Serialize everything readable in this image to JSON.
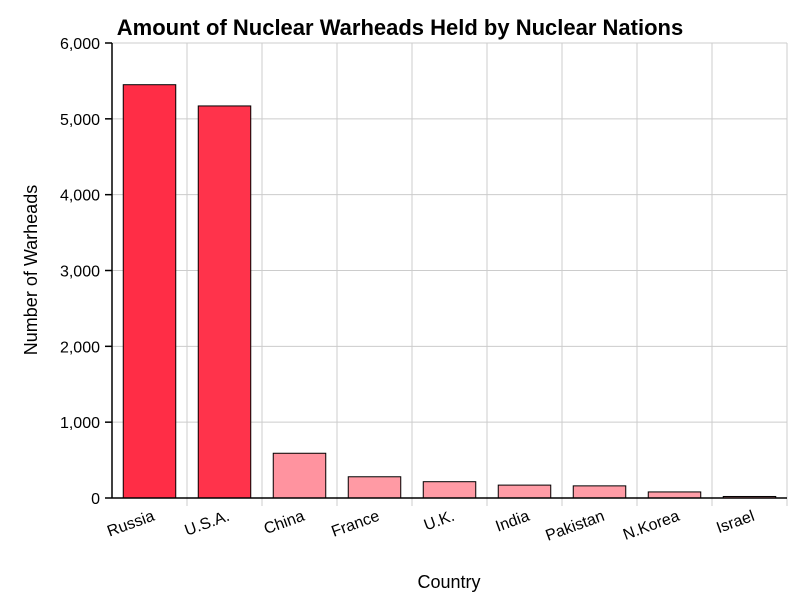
{
  "chart_data": {
    "type": "bar",
    "title": "Amount of Nuclear Warheads Held by Nuclear Nations",
    "xlabel": "Country",
    "ylabel": "Number of Warheads",
    "categories": [
      "Russia",
      "U.S.A.",
      "China",
      "France",
      "U.K.",
      "India",
      "Pakistan",
      "N.Korea",
      "Israel"
    ],
    "values": [
      5450,
      5170,
      590,
      280,
      215,
      170,
      160,
      80,
      20
    ],
    "ylim": [
      0,
      6000
    ],
    "yticks": [
      0,
      1000,
      2000,
      3000,
      4000,
      5000,
      6000
    ],
    "ytick_labels": [
      "0",
      "1,000",
      "2,000",
      "3,000",
      "4,000",
      "5,000",
      "6,000"
    ],
    "grid": true,
    "colors": {
      "bar_high": "#ff2d46",
      "bar_low": "#ff9fa9",
      "bar_stroke": "#000000",
      "grid": "#cccccc",
      "axis": "#000000"
    }
  }
}
